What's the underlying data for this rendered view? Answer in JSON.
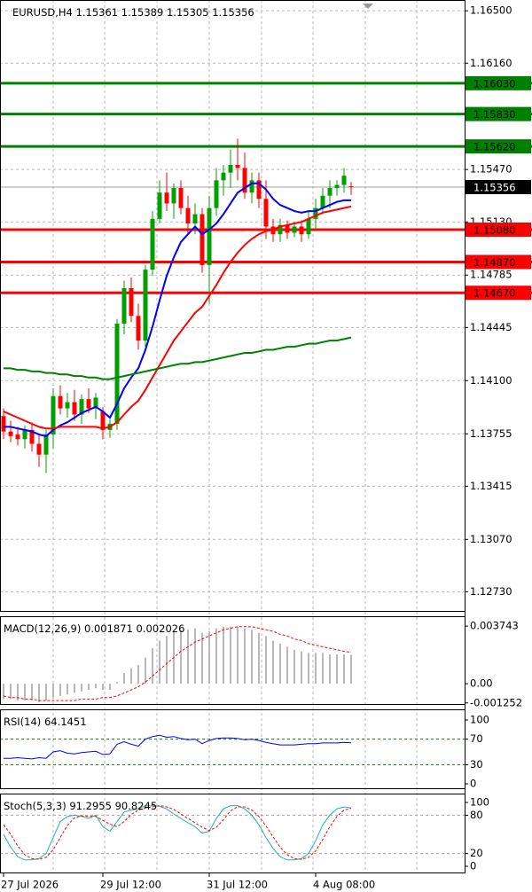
{
  "chart_data": [
    {
      "type": "candlestick",
      "title": "EURUSD,H4",
      "categories": [
        "27 Jul 2026",
        null,
        null,
        null,
        null,
        null,
        null,
        null,
        null,
        null,
        null,
        null,
        null,
        null,
        "29 Jul 12:00",
        null,
        null,
        null,
        null,
        null,
        null,
        null,
        null,
        null,
        null,
        null,
        null,
        null,
        null,
        "31 Jul 12:00",
        null,
        null,
        null,
        null,
        null,
        null,
        null,
        null,
        null,
        null,
        null,
        null,
        null,
        null,
        "4 Aug 08:00",
        null,
        null,
        null,
        null,
        null
      ],
      "open": [
        1.1387,
        1.1377,
        1.1375,
        1.1372,
        1.1378,
        1.1369,
        1.1362,
        1.1375,
        1.14,
        1.1392,
        1.1396,
        1.1388,
        1.1398,
        1.1392,
        1.139,
        1.1378,
        1.1382,
        1.1447,
        1.147,
        1.1452,
        1.1436,
        1.1482,
        1.1515,
        1.1532,
        1.1525,
        1.1535,
        1.1522,
        1.1512,
        1.1518,
        1.1485,
        1.1522,
        1.154,
        1.1545,
        1.155,
        1.1548,
        1.1532,
        1.154,
        1.1528,
        1.151,
        1.1505,
        1.1511,
        1.1506,
        1.151,
        1.1505,
        1.1515,
        1.1522,
        1.153,
        1.1535,
        1.1537,
        1.15361
      ],
      "high": [
        1.1392,
        1.1384,
        1.138,
        1.1381,
        1.1383,
        1.1375,
        1.1378,
        1.1405,
        1.1407,
        1.1402,
        1.1404,
        1.1401,
        1.1405,
        1.1402,
        1.1393,
        1.1385,
        1.145,
        1.1475,
        1.1477,
        1.146,
        1.1485,
        1.152,
        1.154,
        1.1545,
        1.1538,
        1.154,
        1.153,
        1.1525,
        1.1522,
        1.153,
        1.1548,
        1.155,
        1.156,
        1.1567,
        1.1558,
        1.1545,
        1.1545,
        1.154,
        1.1515,
        1.1515,
        1.1514,
        1.1513,
        1.1514,
        1.152,
        1.1528,
        1.1535,
        1.154,
        1.154,
        1.1548,
        1.15389
      ],
      "low": [
        1.1372,
        1.137,
        1.1368,
        1.1366,
        1.1364,
        1.1354,
        1.135,
        1.1366,
        1.1388,
        1.1386,
        1.1384,
        1.1382,
        1.1389,
        1.1385,
        1.1372,
        1.1373,
        1.1378,
        1.144,
        1.1448,
        1.143,
        1.1432,
        1.1478,
        1.1512,
        1.152,
        1.1515,
        1.1518,
        1.1505,
        1.1505,
        1.148,
        1.146,
        1.1517,
        1.153,
        1.1535,
        1.154,
        1.1528,
        1.1525,
        1.1522,
        1.1502,
        1.15,
        1.15,
        1.1502,
        1.1503,
        1.15,
        1.1502,
        1.1508,
        1.1518,
        1.1522,
        1.153,
        1.1532,
        1.15305
      ],
      "close": [
        1.1377,
        1.1374,
        1.1372,
        1.1378,
        1.1369,
        1.1362,
        1.1375,
        1.14,
        1.1392,
        1.1396,
        1.1388,
        1.1398,
        1.1392,
        1.1399,
        1.1378,
        1.1382,
        1.1447,
        1.147,
        1.1452,
        1.1436,
        1.1482,
        1.1515,
        1.1532,
        1.1525,
        1.1535,
        1.1522,
        1.1512,
        1.1518,
        1.1485,
        1.1522,
        1.154,
        1.1545,
        1.155,
        1.1548,
        1.1532,
        1.154,
        1.1528,
        1.151,
        1.1505,
        1.1511,
        1.1506,
        1.151,
        1.1505,
        1.1515,
        1.1522,
        1.153,
        1.1535,
        1.1537,
        1.1543,
        1.15356
      ],
      "up_color": "#00a000",
      "down_color": "#ff0000",
      "series": [
        {
          "color": "#0000ff",
          "values": [
            1.138,
            1.138,
            1.1379,
            1.1378,
            1.1377,
            1.1375,
            1.1374,
            1.1378,
            1.1381,
            1.1383,
            1.1386,
            1.1389,
            1.1391,
            1.1393,
            1.139,
            1.1386,
            1.1395,
            1.1405,
            1.1412,
            1.1418,
            1.143,
            1.1445,
            1.1462,
            1.1478,
            1.149,
            1.15,
            1.1505,
            1.151,
            1.1505,
            1.1508,
            1.1512,
            1.1518,
            1.1525,
            1.1532,
            1.1535,
            1.1538,
            1.1538,
            1.1534,
            1.1528,
            1.1524,
            1.1522,
            1.152,
            1.1519,
            1.152,
            1.152,
            1.1522,
            1.1524,
            1.1526,
            1.1527,
            1.1527
          ]
        },
        {
          "color": "#ff0000",
          "values": [
            1.139,
            1.1388,
            1.1386,
            1.1384,
            1.1382,
            1.138,
            1.1379,
            1.1379,
            1.138,
            1.138,
            1.138,
            1.138,
            1.138,
            1.138,
            1.1379,
            1.138,
            1.1383,
            1.1388,
            1.1393,
            1.1397,
            1.1404,
            1.1412,
            1.142,
            1.1428,
            1.1436,
            1.1442,
            1.1448,
            1.1454,
            1.1458,
            1.1465,
            1.1472,
            1.148,
            1.1487,
            1.1493,
            1.1498,
            1.1502,
            1.1505,
            1.1507,
            1.1508,
            1.151,
            1.1511,
            1.1512,
            1.1513,
            1.1515,
            1.1517,
            1.1519,
            1.152,
            1.1521,
            1.1522,
            1.1523
          ]
        },
        {
          "color": "#008000",
          "values": [
            1.1418,
            1.1418,
            1.1417,
            1.1417,
            1.1416,
            1.1416,
            1.1415,
            1.1415,
            1.1414,
            1.1414,
            1.1413,
            1.1413,
            1.1412,
            1.1412,
            1.1411,
            1.1411,
            1.1412,
            1.1413,
            1.1414,
            1.1415,
            1.1416,
            1.1417,
            1.1418,
            1.1419,
            1.142,
            1.1421,
            1.1421,
            1.1422,
            1.1422,
            1.1423,
            1.1424,
            1.1425,
            1.1426,
            1.1427,
            1.1428,
            1.1428,
            1.1429,
            1.143,
            1.143,
            1.1431,
            1.1432,
            1.1432,
            1.1433,
            1.1434,
            1.1434,
            1.1435,
            1.1436,
            1.1436,
            1.1437,
            1.1438
          ]
        }
      ],
      "levels": [
        {
          "value": 1.1603,
          "label": "1.16030",
          "color": "#008000"
        },
        {
          "value": 1.1583,
          "label": "1.15830",
          "color": "#008000"
        },
        {
          "value": 1.1562,
          "label": "1.15620",
          "color": "#008000"
        },
        {
          "value": 1.1508,
          "label": "1.15080",
          "color": "#ff0000"
        },
        {
          "value": 1.1487,
          "label": "1.14870",
          "color": "#ff0000"
        },
        {
          "value": 1.1467,
          "label": "1.14670",
          "color": "#ff0000"
        }
      ],
      "ylim": [
        1.126,
        1.1657
      ],
      "yticks": [
        {
          "value": 1.165,
          "label": "1.16500"
        },
        {
          "value": 1.1616,
          "label": "1.16160"
        },
        {
          "value": 1.1547,
          "label": "1.15470"
        },
        {
          "value": 1.1513,
          "label": "1.15130"
        },
        1.14785,
        1.14445,
        {
          "value": 1.141,
          "label": "1.14100"
        },
        1.13755,
        1.13415,
        {
          "value": 1.1307,
          "label": "1.13070"
        },
        {
          "value": 1.1273,
          "label": "1.12730"
        }
      ],
      "grid": true
    },
    {
      "type": "macd",
      "title": "MACD(12,26,9)",
      "histogram": {
        "color": "#a0a0a0",
        "values": [
          -0.001,
          -0.001,
          -0.0011,
          -0.0011,
          -0.0011,
          -0.0012,
          -0.0011,
          -0.0009,
          -0.0008,
          -0.0007,
          -0.0006,
          -0.0005,
          -0.0004,
          -0.0003,
          -0.0004,
          -0.0004,
          0.0001,
          0.0007,
          0.001,
          0.0012,
          0.0017,
          0.0023,
          0.0028,
          0.0031,
          0.0034,
          0.0035,
          0.0035,
          0.0036,
          0.0033,
          0.0034,
          0.0036,
          0.0037,
          0.0037,
          0.0037,
          0.0036,
          0.0035,
          0.0033,
          0.0031,
          0.0028,
          0.0026,
          0.0024,
          0.0022,
          0.0021,
          0.002,
          0.002,
          0.002,
          0.0019,
          0.0019,
          0.0019,
          0.001871
        ]
      },
      "signal": {
        "color": "#ff0000",
        "values": [
          -0.0008,
          -0.0009,
          -0.0009,
          -0.001,
          -0.001,
          -0.0011,
          -0.0011,
          -0.0011,
          -0.0011,
          -0.0011,
          -0.0011,
          -0.001,
          -0.001,
          -0.001,
          -0.0009,
          -0.0009,
          -0.0008,
          -0.0006,
          -0.0004,
          -0.0002,
          0.0001,
          0.0005,
          0.0009,
          0.0013,
          0.0017,
          0.0021,
          0.0024,
          0.0027,
          0.0029,
          0.0031,
          0.0033,
          0.0035,
          0.0036,
          0.0037,
          0.0037,
          0.0037,
          0.0036,
          0.0035,
          0.0034,
          0.0032,
          0.0031,
          0.0029,
          0.0028,
          0.0026,
          0.0025,
          0.0024,
          0.0023,
          0.0022,
          0.0021,
          0.002026
        ]
      },
      "ylim": [
        -0.00138,
        0.00438
      ],
      "yticks": [
        0.003743,
        {
          "value": 0,
          "label": "0.00"
        },
        -0.001252
      ]
    },
    {
      "type": "line",
      "title": "RSI(14)",
      "series": [
        {
          "color": "#0000ff",
          "values": [
            40,
            40,
            41,
            40,
            39,
            41,
            40,
            50,
            52,
            48,
            47,
            49,
            50,
            51,
            46,
            47,
            62,
            66,
            62,
            59,
            70,
            74,
            76,
            73,
            74,
            71,
            69,
            70,
            63,
            68,
            71,
            72,
            72,
            71,
            69,
            70,
            68,
            65,
            63,
            61,
            61,
            61,
            62,
            63,
            63,
            64,
            64,
            64,
            65,
            64.1451
          ]
        }
      ],
      "levels": [
        70,
        30
      ],
      "level_color": "#008000",
      "ylim": [
        -8.3,
        116.7
      ],
      "yticks": [
        100,
        70,
        30,
        0
      ]
    },
    {
      "type": "line",
      "title": "Stoch(5,3,3)",
      "series": [
        {
          "color": "#20b2aa",
          "values": [
            50,
            30,
            15,
            10,
            10,
            12,
            20,
            45,
            70,
            78,
            80,
            78,
            75,
            80,
            62,
            55,
            70,
            85,
            88,
            90,
            95,
            95,
            94,
            90,
            82,
            75,
            68,
            62,
            52,
            55,
            75,
            90,
            95,
            95,
            90,
            80,
            65,
            45,
            28,
            15,
            10,
            10,
            12,
            20,
            40,
            65,
            80,
            90,
            93,
            91.2955
          ]
        },
        {
          "color": "#ff0000",
          "dashed": true,
          "values": [
            65,
            50,
            32,
            18,
            12,
            11,
            14,
            26,
            45,
            64,
            76,
            79,
            78,
            78,
            72,
            66,
            62,
            70,
            81,
            88,
            91,
            93,
            95,
            93,
            89,
            82,
            75,
            68,
            61,
            56,
            61,
            73,
            87,
            93,
            93,
            88,
            78,
            63,
            46,
            30,
            18,
            12,
            11,
            14,
            24,
            42,
            62,
            78,
            88,
            90.8245
          ]
        }
      ],
      "levels": [
        80,
        20
      ],
      "level_color": "#a0a0a0",
      "ylim": [
        -11.1,
        113.9
      ],
      "yticks": [
        100,
        80,
        20,
        0
      ]
    }
  ]
}
